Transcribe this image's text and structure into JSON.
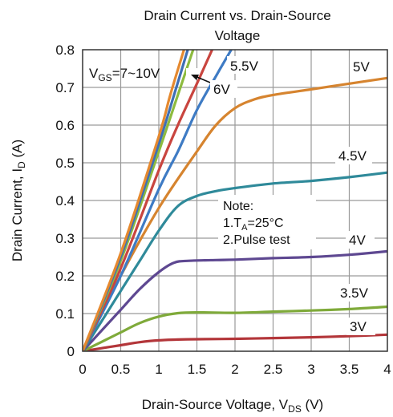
{
  "chart_data": {
    "type": "line",
    "title_line1": "Drain Current vs. Drain-Source",
    "title_line2": "Voltage",
    "xlabel": {
      "main": "Drain-Source Voltage, V",
      "sub": "DS",
      "unit": " (V)"
    },
    "ylabel": {
      "main": "Drain Current, I",
      "sub": "D",
      "unit": " (A)"
    },
    "xlim": [
      0,
      4
    ],
    "ylim": [
      0,
      0.8
    ],
    "x_ticks": [
      "0",
      "0.5",
      "1",
      "1.5",
      "2",
      "2.5",
      "3",
      "3.5",
      "4"
    ],
    "y_ticks": [
      "0",
      "0.1",
      "0.2",
      "0.3",
      "0.4",
      "0.5",
      "0.6",
      "0.7",
      "0.8"
    ],
    "grid": true,
    "note": {
      "header": "Note:",
      "line1_pre": "1.T",
      "line1_sub": "A",
      "line1_post": "=25°C",
      "line2": "2.Pulse test"
    },
    "range_label": {
      "pre": "V",
      "sub": "GS",
      "post": "=7~10V"
    },
    "series": [
      {
        "name": "3V",
        "color": "#b3363a",
        "points": [
          [
            0,
            0
          ],
          [
            0.25,
            0.008
          ],
          [
            0.5,
            0.016
          ],
          [
            0.75,
            0.024
          ],
          [
            1,
            0.029
          ],
          [
            1.25,
            0.031
          ],
          [
            1.5,
            0.032
          ],
          [
            2,
            0.033
          ],
          [
            2.5,
            0.035
          ],
          [
            3,
            0.037
          ],
          [
            3.5,
            0.04
          ],
          [
            4,
            0.044
          ]
        ]
      },
      {
        "name": "3.5V",
        "color": "#7faa3a",
        "points": [
          [
            0,
            0
          ],
          [
            0.25,
            0.025
          ],
          [
            0.5,
            0.05
          ],
          [
            0.75,
            0.075
          ],
          [
            1,
            0.092
          ],
          [
            1.25,
            0.101
          ],
          [
            1.5,
            0.103
          ],
          [
            2,
            0.102
          ],
          [
            2.5,
            0.105
          ],
          [
            3,
            0.108
          ],
          [
            3.5,
            0.112
          ],
          [
            4,
            0.118
          ]
        ]
      },
      {
        "name": "4V",
        "color": "#5e4891",
        "points": [
          [
            0,
            0
          ],
          [
            0.25,
            0.055
          ],
          [
            0.5,
            0.11
          ],
          [
            0.75,
            0.165
          ],
          [
            1,
            0.21
          ],
          [
            1.2,
            0.235
          ],
          [
            1.4,
            0.24
          ],
          [
            1.75,
            0.242
          ],
          [
            2,
            0.243
          ],
          [
            2.5,
            0.247
          ],
          [
            3,
            0.25
          ],
          [
            3.5,
            0.256
          ],
          [
            4,
            0.265
          ]
        ]
      },
      {
        "name": "4.5V",
        "color": "#2f8a9a",
        "points": [
          [
            0,
            0
          ],
          [
            0.25,
            0.08
          ],
          [
            0.5,
            0.16
          ],
          [
            0.75,
            0.24
          ],
          [
            1,
            0.32
          ],
          [
            1.25,
            0.385
          ],
          [
            1.5,
            0.412
          ],
          [
            1.75,
            0.425
          ],
          [
            2,
            0.433
          ],
          [
            2.5,
            0.445
          ],
          [
            3,
            0.452
          ],
          [
            3.5,
            0.462
          ],
          [
            4,
            0.474
          ]
        ]
      },
      {
        "name": "5V",
        "color": "#d6842f",
        "points": [
          [
            0,
            0
          ],
          [
            0.5,
            0.2
          ],
          [
            1,
            0.38
          ],
          [
            1.5,
            0.53
          ],
          [
            1.75,
            0.6
          ],
          [
            2,
            0.645
          ],
          [
            2.25,
            0.668
          ],
          [
            2.5,
            0.68
          ],
          [
            3,
            0.695
          ],
          [
            3.5,
            0.71
          ],
          [
            4,
            0.725
          ]
        ]
      },
      {
        "name": "5.5V",
        "color": "#3e7bc4",
        "points": [
          [
            0,
            0
          ],
          [
            0.5,
            0.2
          ],
          [
            1,
            0.43
          ],
          [
            1.25,
            0.53
          ],
          [
            1.5,
            0.64
          ],
          [
            1.75,
            0.73
          ],
          [
            1.95,
            0.8
          ]
        ]
      },
      {
        "name": "6V",
        "color": "#c9453f",
        "points": [
          [
            0,
            0
          ],
          [
            0.5,
            0.22
          ],
          [
            1,
            0.48
          ],
          [
            1.25,
            0.6
          ],
          [
            1.5,
            0.71
          ],
          [
            1.7,
            0.8
          ]
        ]
      },
      {
        "name": "7V",
        "color": "#8dbb3f",
        "points": [
          [
            0,
            0
          ],
          [
            0.5,
            0.24
          ],
          [
            1,
            0.53
          ],
          [
            1.25,
            0.68
          ],
          [
            1.45,
            0.8
          ]
        ]
      },
      {
        "name": "8V",
        "color": "#3f6fb5",
        "points": [
          [
            0,
            0
          ],
          [
            0.5,
            0.25
          ],
          [
            1,
            0.55
          ],
          [
            1.2,
            0.68
          ],
          [
            1.38,
            0.8
          ]
        ]
      },
      {
        "name": "10V",
        "color": "#e5892f",
        "points": [
          [
            0,
            0
          ],
          [
            0.5,
            0.26
          ],
          [
            1,
            0.57
          ],
          [
            1.15,
            0.68
          ],
          [
            1.33,
            0.8
          ]
        ]
      }
    ],
    "curve_labels": [
      {
        "series": "5.5V",
        "text": "5.5V"
      },
      {
        "series": "6V",
        "text": "6V"
      },
      {
        "series": "5V",
        "text": "5V"
      },
      {
        "series": "4.5V",
        "text": "4.5V"
      },
      {
        "series": "4V",
        "text": "4V"
      },
      {
        "series": "3.5V",
        "text": "3.5V"
      },
      {
        "series": "3V",
        "text": "3V"
      }
    ]
  }
}
